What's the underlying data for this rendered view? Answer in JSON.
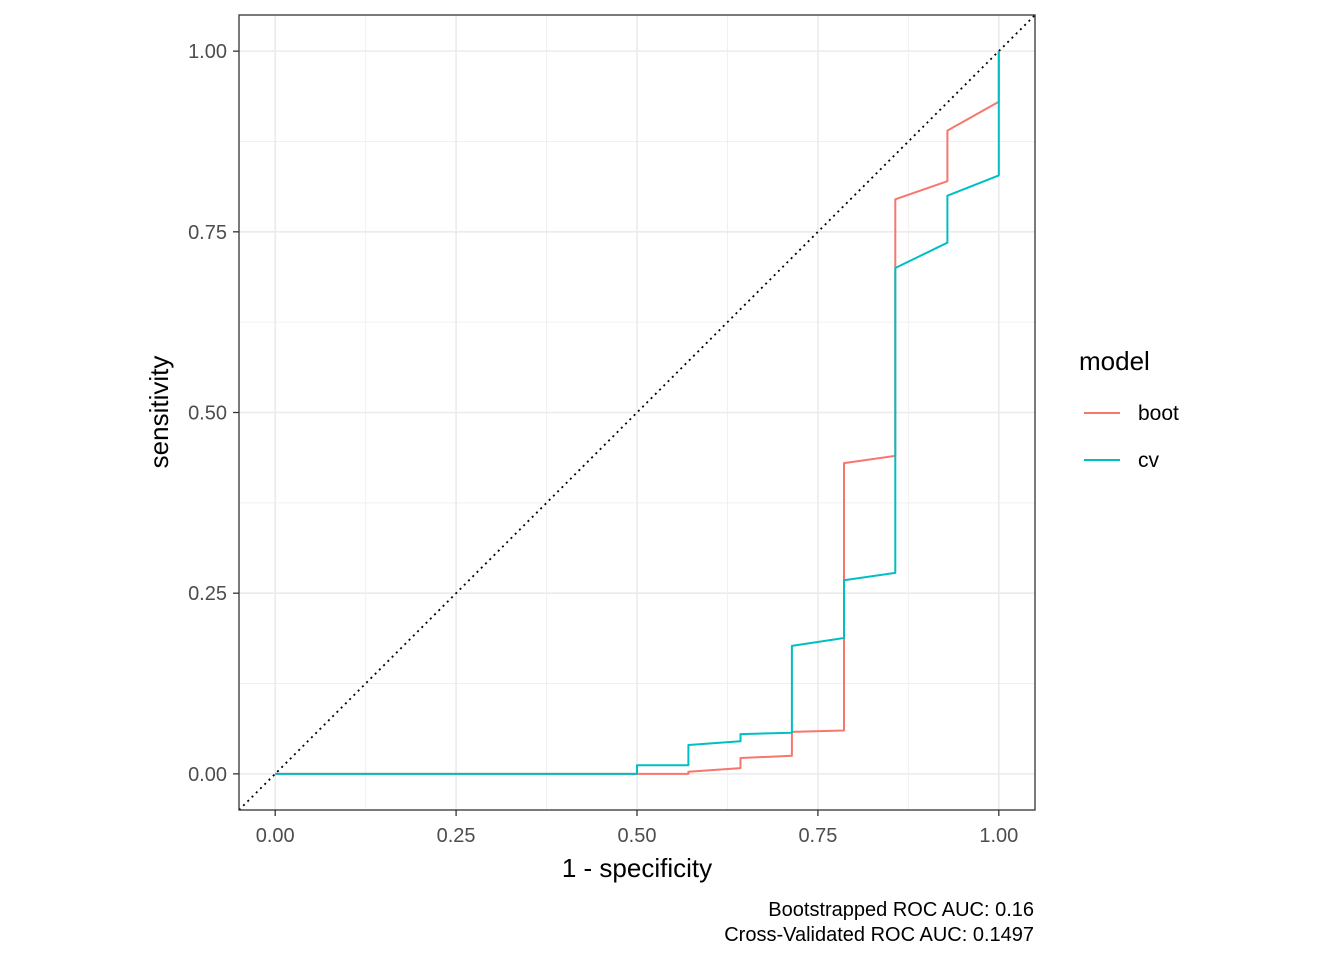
{
  "chart_data": {
    "type": "line",
    "xlabel": "1 - specificity",
    "ylabel": "sensitivity",
    "xlim": [
      -0.05,
      1.05
    ],
    "ylim": [
      -0.05,
      1.05
    ],
    "x_ticks": [
      "0.00",
      "0.25",
      "0.50",
      "0.75",
      "1.00"
    ],
    "y_ticks": [
      "0.00",
      "0.25",
      "0.50",
      "0.75",
      "1.00"
    ],
    "grid": true,
    "reference_line": {
      "style": "dotted",
      "from": [
        0,
        0
      ],
      "to": [
        1,
        1
      ]
    },
    "legend": {
      "title": "model",
      "position": "right"
    },
    "caption": [
      "Bootstrapped ROC AUC: 0.16",
      "Cross-Validated ROC AUC: 0.1497"
    ],
    "series": [
      {
        "name": "boot",
        "color": "#F8766D",
        "points": [
          [
            0,
            0
          ],
          [
            0.5,
            0
          ],
          [
            0.571,
            0
          ],
          [
            0.571,
            0.003
          ],
          [
            0.643,
            0.008
          ],
          [
            0.643,
            0.022
          ],
          [
            0.714,
            0.025
          ],
          [
            0.714,
            0.058
          ],
          [
            0.786,
            0.06
          ],
          [
            0.786,
            0.43
          ],
          [
            0.857,
            0.44
          ],
          [
            0.857,
            0.795
          ],
          [
            0.929,
            0.82
          ],
          [
            0.929,
            0.89
          ],
          [
            1.0,
            0.93
          ],
          [
            1.0,
            1.0
          ]
        ]
      },
      {
        "name": "cv",
        "color": "#00BFC4",
        "points": [
          [
            0,
            0
          ],
          [
            0.5,
            0
          ],
          [
            0.5,
            0.012
          ],
          [
            0.571,
            0.012
          ],
          [
            0.571,
            0.04
          ],
          [
            0.643,
            0.045
          ],
          [
            0.643,
            0.055
          ],
          [
            0.714,
            0.057
          ],
          [
            0.714,
            0.177
          ],
          [
            0.786,
            0.188
          ],
          [
            0.786,
            0.268
          ],
          [
            0.857,
            0.278
          ],
          [
            0.857,
            0.7
          ],
          [
            0.929,
            0.735
          ],
          [
            0.929,
            0.8
          ],
          [
            1.0,
            0.828
          ],
          [
            1.0,
            1.0
          ]
        ]
      }
    ]
  }
}
